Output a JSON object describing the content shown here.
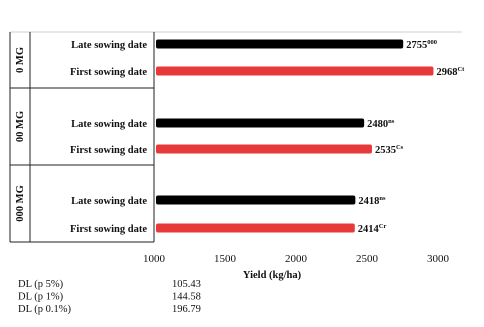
{
  "chart_data": {
    "type": "bar",
    "orientation": "horizontal",
    "xlabel": "Yield (kg/ha)",
    "xlim": [
      1000,
      3000
    ],
    "xticks": [
      "1000",
      "1500",
      "2000",
      "2500",
      "3000"
    ],
    "colors": {
      "late": "#000000",
      "first": "#e8393a"
    },
    "groups": [
      {
        "name": "0 MG",
        "bars": [
          {
            "label": "Late sowing date",
            "series": "late",
            "value": 2755,
            "value_text": "2755",
            "sup": "000"
          },
          {
            "label": "First sowing date",
            "series": "first",
            "value": 2968,
            "value_text": "2968",
            "sup": "Ct"
          }
        ]
      },
      {
        "name": "00 MG",
        "bars": [
          {
            "label": "Late sowing date",
            "series": "late",
            "value": 2480,
            "value_text": "2480",
            "sup": "ns"
          },
          {
            "label": "First sowing date",
            "series": "first",
            "value": 2535,
            "value_text": "2535",
            "sup": "Cs"
          }
        ]
      },
      {
        "name": "000 MG",
        "bars": [
          {
            "label": "Late sowing date",
            "series": "late",
            "value": 2418,
            "value_text": "2418",
            "sup": "ns"
          },
          {
            "label": "First sowing date",
            "series": "first",
            "value": 2414,
            "value_text": "2414",
            "sup": "Cr"
          }
        ]
      }
    ]
  },
  "dl_table": [
    {
      "label": "DL (p 5%)",
      "value": "105.43"
    },
    {
      "label": "DL (p 1%)",
      "value": "144.58"
    },
    {
      "label": "DL (p 0.1%)",
      "value": "196.79"
    }
  ]
}
